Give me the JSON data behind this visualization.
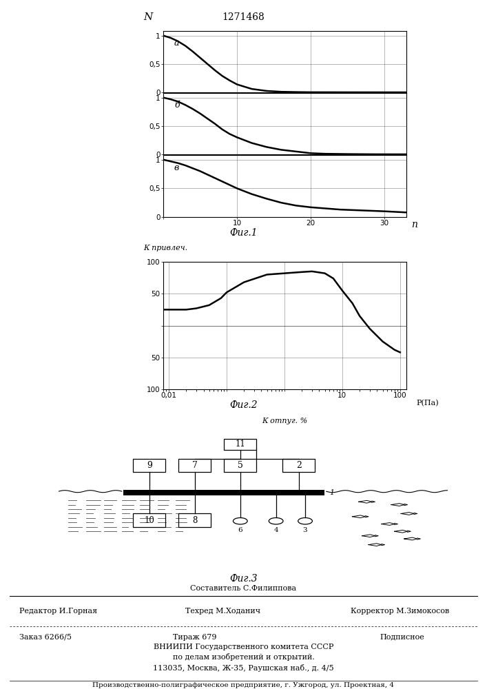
{
  "patent_number": "1271468",
  "fig1_title": "Фиг.1",
  "fig2_title": "Фиг.2",
  "fig3_title": "Фиг.3",
  "fig1_ylabel": "N",
  "fig1_xlabel": "n",
  "fig1_curves": [
    {
      "label": "а",
      "x": [
        0,
        1,
        2,
        3,
        4,
        5,
        6,
        7,
        8,
        9,
        10,
        12,
        14,
        16,
        18,
        20,
        25,
        30,
        33
      ],
      "y": [
        1.0,
        0.96,
        0.9,
        0.82,
        0.72,
        0.61,
        0.5,
        0.39,
        0.29,
        0.21,
        0.14,
        0.06,
        0.025,
        0.01,
        0.005,
        0.002,
        0.001,
        0.0005,
        0.0003
      ]
    },
    {
      "label": "б",
      "x": [
        0,
        1,
        2,
        3,
        4,
        5,
        6,
        7,
        8,
        9,
        10,
        12,
        14,
        16,
        18,
        20,
        22,
        25,
        28,
        30,
        33
      ],
      "y": [
        1.0,
        0.97,
        0.93,
        0.87,
        0.8,
        0.72,
        0.63,
        0.54,
        0.44,
        0.36,
        0.3,
        0.2,
        0.13,
        0.08,
        0.05,
        0.02,
        0.01,
        0.005,
        0.002,
        0.001,
        0.0005
      ]
    },
    {
      "label": "в",
      "x": [
        0,
        1,
        2,
        3,
        4,
        5,
        6,
        7,
        8,
        9,
        10,
        12,
        14,
        16,
        18,
        20,
        22,
        24,
        26,
        28,
        30,
        33
      ],
      "y": [
        1.0,
        0.97,
        0.94,
        0.9,
        0.85,
        0.8,
        0.74,
        0.68,
        0.62,
        0.56,
        0.5,
        0.4,
        0.32,
        0.25,
        0.2,
        0.17,
        0.15,
        0.13,
        0.12,
        0.11,
        0.1,
        0.08
      ]
    }
  ],
  "fig2_ylabel": "К привлеч.",
  "fig2_xlabel": "К отпуг. %",
  "fig2_xlabel2": "Р(Па)",
  "fig2_x": [
    0.005,
    0.007,
    0.01,
    0.015,
    0.02,
    0.03,
    0.05,
    0.08,
    0.1,
    0.2,
    0.5,
    1,
    2,
    3,
    5,
    7,
    10,
    15,
    20,
    30,
    50,
    80,
    100
  ],
  "fig2_y": [
    25,
    25,
    25,
    25,
    25,
    27,
    32,
    43,
    52,
    68,
    80,
    82,
    84,
    85,
    82,
    74,
    55,
    35,
    15,
    -5,
    -25,
    -38,
    -42
  ],
  "footer_text1": "Составитель С.Филиппова",
  "footer_text2": "Редактор И.Горная",
  "footer_text3": "Техред М.Ходанич",
  "footer_text4": "Корректор М.Зимокосов",
  "footer_text5": "Заказ 6266/5",
  "footer_text6": "Тираж 679",
  "footer_text7": "Подписное",
  "footer_text8": "ВНИИПИ Государственного комитета СССР",
  "footer_text9": "по делам изобретений и открытий.",
  "footer_text10": "113035, Москва, Ж-35, Раушская наб., д. 4/5",
  "footer_text11": "Производственно-полиграфическое предприятие, г. Ужгород, ул. Проектная, 4"
}
